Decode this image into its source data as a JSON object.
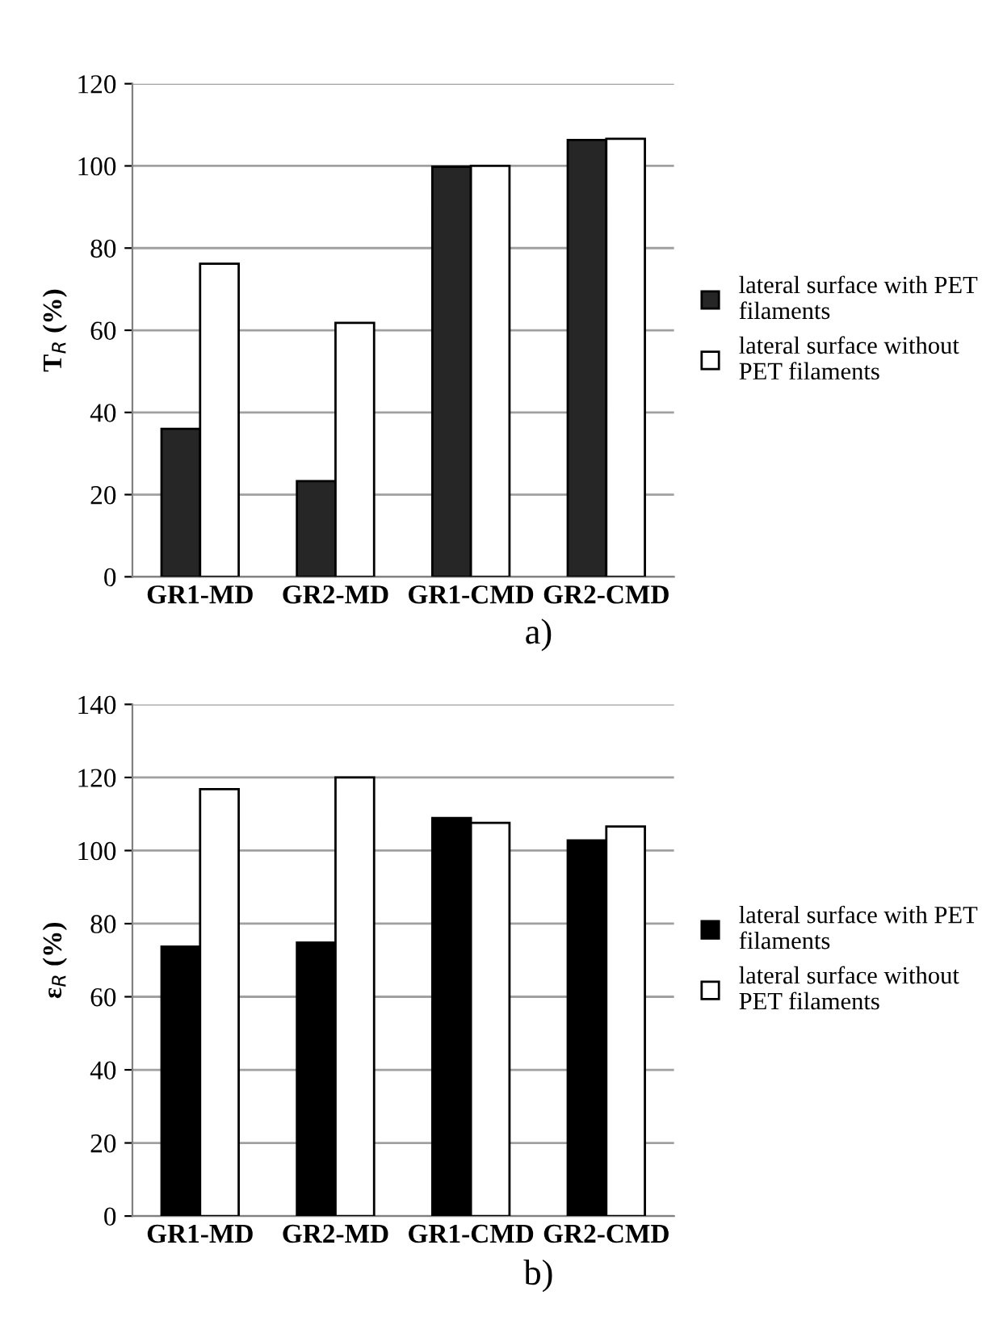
{
  "chart_data": [
    {
      "type": "bar",
      "ylabel": "T$_{R}$ (%)",
      "annotations": [
        "a)"
      ],
      "categories": [
        "GR1-MD",
        "GR2-MD",
        "GR1-CMD",
        "GR2-CMD"
      ],
      "series": [
        {
          "name": "lateral surface with PET\nfilaments",
          "color": "#262626",
          "values": [
            36,
            23.3,
            99.8,
            106.3
          ]
        },
        {
          "name": "lateral surface without\nPET filaments",
          "color": "#ffffff",
          "values": [
            76.2,
            61.8,
            100,
            106.6
          ]
        }
      ],
      "ylim": [
        0,
        120
      ],
      "yticks": [
        0,
        20,
        40,
        60,
        80,
        100,
        120
      ],
      "grid": "y",
      "legend": "right"
    },
    {
      "type": "bar",
      "ylabel": "ε$_{R}$ (%)",
      "annotations": [
        "b)"
      ],
      "categories": [
        "GR1-MD",
        "GR2-MD",
        "GR1-CMD",
        "GR2-CMD"
      ],
      "series": [
        {
          "name": "lateral surface with PET\nfilaments",
          "color": "#000000",
          "values": [
            73.7,
            74.8,
            108.9,
            102.8
          ]
        },
        {
          "name": "lateral surface without\nPET filaments",
          "color": "#ffffff",
          "values": [
            116.8,
            120,
            107.6,
            106.6
          ]
        }
      ],
      "ylim": [
        0,
        140
      ],
      "yticks": [
        0,
        20,
        40,
        60,
        80,
        100,
        120,
        140
      ],
      "grid": "y",
      "legend": "right"
    }
  ]
}
